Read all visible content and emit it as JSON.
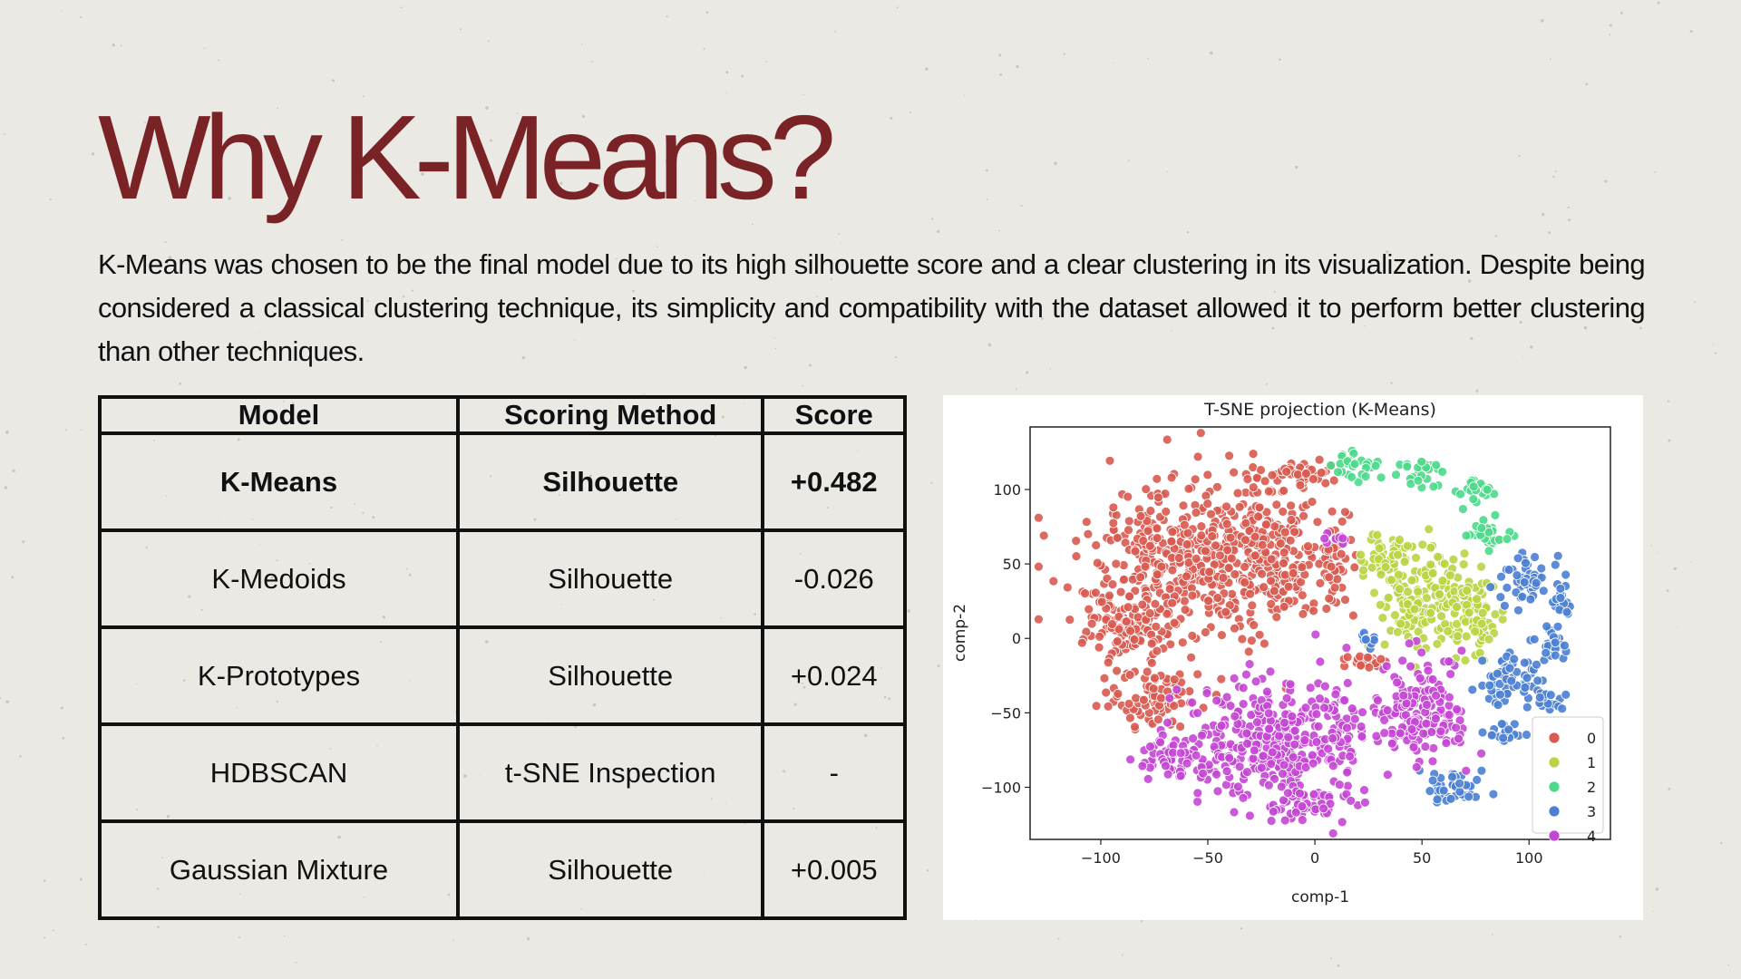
{
  "slide": {
    "title": "Why K-Means?",
    "body": "K-Means was chosen to be the final model due to its high silhouette score and a clear clustering in its visualization. Despite being considered a classical clustering technique, its simplicity and compatibility with the dataset allowed it to perform better clustering than other techniques.",
    "title_color": "#7a2326",
    "background_color": "#ebe9e4"
  },
  "table": {
    "headers": [
      "Model",
      "Scoring Method",
      "Score"
    ],
    "rows": [
      {
        "model": "K-Means",
        "method": "Silhouette",
        "score": "+0.482",
        "bold": true
      },
      {
        "model": "K-Medoids",
        "method": "Silhouette",
        "score": "-0.026",
        "bold": false
      },
      {
        "model": "K-Prototypes",
        "method": "Silhouette",
        "score": "+0.024",
        "bold": false
      },
      {
        "model": "HDBSCAN",
        "method": "t-SNE Inspection",
        "score": "-",
        "bold": false
      },
      {
        "model": "Gaussian Mixture",
        "method": "Silhouette",
        "score": "+0.005",
        "bold": false
      }
    ]
  },
  "chart_data": {
    "type": "scatter",
    "title": "T-SNE projection (K-Means)",
    "xlabel": "comp-1",
    "ylabel": "comp-2",
    "xlim": [
      -133,
      138
    ],
    "ylim": [
      -135,
      142
    ],
    "xticks": [
      -100,
      -50,
      0,
      50,
      100
    ],
    "yticks": [
      100,
      50,
      0,
      -50,
      -100
    ],
    "xtick_labels": [
      "−100",
      "−50",
      "0",
      "50",
      "100"
    ],
    "ytick_labels": [
      "100",
      "50",
      "0",
      "−50",
      "−100"
    ],
    "grid": false,
    "legend_position": "lower-right",
    "series": [
      {
        "name": "0",
        "color": "#d95a50",
        "regions": [
          {
            "cx": -62,
            "cy": 50,
            "rx": 48,
            "ry": 55,
            "n": 420
          },
          {
            "cx": -20,
            "cy": 60,
            "rx": 28,
            "ry": 50,
            "n": 220
          },
          {
            "cx": -90,
            "cy": 5,
            "rx": 22,
            "ry": 22,
            "n": 90
          },
          {
            "cx": -75,
            "cy": -40,
            "rx": 25,
            "ry": 20,
            "n": 90
          },
          {
            "cx": -5,
            "cy": 110,
            "rx": 12,
            "ry": 8,
            "n": 40
          },
          {
            "cx": 10,
            "cy": 45,
            "rx": 8,
            "ry": 30,
            "n": 40
          },
          {
            "cx": 25,
            "cy": -15,
            "rx": 12,
            "ry": 5,
            "n": 20
          }
        ]
      },
      {
        "name": "1",
        "color": "#b8d444",
        "regions": [
          {
            "cx": 55,
            "cy": 25,
            "rx": 22,
            "ry": 30,
            "n": 180
          },
          {
            "cx": 35,
            "cy": 55,
            "rx": 12,
            "ry": 15,
            "n": 50
          },
          {
            "cx": 75,
            "cy": 15,
            "rx": 10,
            "ry": 25,
            "n": 50
          }
        ]
      },
      {
        "name": "2",
        "color": "#4bd98a",
        "regions": [
          {
            "cx": 20,
            "cy": 115,
            "rx": 14,
            "ry": 10,
            "n": 30
          },
          {
            "cx": 50,
            "cy": 110,
            "rx": 12,
            "ry": 10,
            "n": 25
          },
          {
            "cx": 75,
            "cy": 100,
            "rx": 8,
            "ry": 10,
            "n": 20
          },
          {
            "cx": 82,
            "cy": 70,
            "rx": 12,
            "ry": 10,
            "n": 30
          }
        ]
      },
      {
        "name": "3",
        "color": "#4a7fd4",
        "regions": [
          {
            "cx": 100,
            "cy": 40,
            "rx": 12,
            "ry": 20,
            "n": 50
          },
          {
            "cx": 90,
            "cy": -30,
            "rx": 15,
            "ry": 15,
            "n": 60
          },
          {
            "cx": 110,
            "cy": -5,
            "rx": 10,
            "ry": 15,
            "n": 30
          },
          {
            "cx": 65,
            "cy": -100,
            "rx": 15,
            "ry": 12,
            "n": 40
          },
          {
            "cx": 88,
            "cy": -65,
            "rx": 12,
            "ry": 8,
            "n": 20
          },
          {
            "cx": 110,
            "cy": -40,
            "rx": 8,
            "ry": 8,
            "n": 15
          },
          {
            "cx": 25,
            "cy": 0,
            "rx": 6,
            "ry": 6,
            "n": 10
          },
          {
            "cx": 115,
            "cy": 25,
            "rx": 8,
            "ry": 8,
            "n": 15
          }
        ]
      },
      {
        "name": "4",
        "color": "#c446d4",
        "regions": [
          {
            "cx": -15,
            "cy": -70,
            "rx": 45,
            "ry": 40,
            "n": 380
          },
          {
            "cx": 50,
            "cy": -50,
            "rx": 22,
            "ry": 35,
            "n": 160
          },
          {
            "cx": -60,
            "cy": -80,
            "rx": 25,
            "ry": 15,
            "n": 70
          },
          {
            "cx": 10,
            "cy": 65,
            "rx": 8,
            "ry": 5,
            "n": 12
          },
          {
            "cx": -5,
            "cy": -110,
            "rx": 20,
            "ry": 10,
            "n": 50
          }
        ]
      }
    ]
  }
}
